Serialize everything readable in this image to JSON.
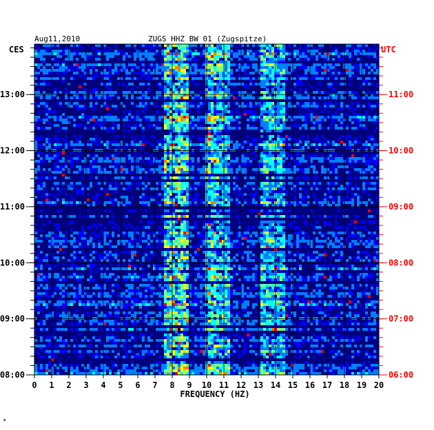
{
  "header": {
    "date": "Aug11,2010",
    "station": "ZUGS HHZ BW 01 (Zugspitze)"
  },
  "chart_data": {
    "type": "heatmap",
    "title": "ZUGS HHZ BW 01 (Zugspitze)",
    "date": "Aug11,2010",
    "xlabel": "FREQUENCY (HZ)",
    "xlim": [
      0,
      20
    ],
    "x_ticks": [
      "0",
      "1",
      "2",
      "3",
      "4",
      "5",
      "6",
      "7",
      "8",
      "9",
      "10",
      "11",
      "12",
      "13",
      "14",
      "15",
      "16",
      "17",
      "18",
      "19",
      "20"
    ],
    "left_axis_label": "CES",
    "left_ticks": [
      {
        "label": "13:00",
        "hour": 13
      },
      {
        "label": "12:00",
        "hour": 12
      },
      {
        "label": "11:00",
        "hour": 11
      },
      {
        "label": "10:00",
        "hour": 10
      },
      {
        "label": "09:00",
        "hour": 9
      },
      {
        "label": "08:00",
        "hour": 8
      }
    ],
    "right_axis_label": "UTC",
    "right_ticks": [
      {
        "label": "11:00",
        "hour": 11
      },
      {
        "label": "10:00",
        "hour": 10
      },
      {
        "label": "09:00",
        "hour": 9
      },
      {
        "label": "08:00",
        "hour": 8
      },
      {
        "label": "07:00",
        "hour": 7
      },
      {
        "label": "06:00",
        "hour": 6
      }
    ],
    "time_range_ces": [
      8.0,
      13.9
    ],
    "grid": true,
    "colormap": [
      "#00007f",
      "#0000ff",
      "#007fff",
      "#00ffff",
      "#7fff7f",
      "#ffff00",
      "#ff7f00",
      "#ff0000"
    ],
    "energy_bands_hz": [
      {
        "range": [
          7.6,
          9.0
        ],
        "strength": 0.55
      },
      {
        "range": [
          9.9,
          10.5
        ],
        "strength": 0.5
      },
      {
        "range": [
          10.6,
          11.3
        ],
        "strength": 0.4
      },
      {
        "range": [
          13.2,
          14.5
        ],
        "strength": 0.35
      }
    ]
  },
  "colors": {
    "left_label": "#000000",
    "right_label": "#ff0000",
    "grid": "#000000"
  },
  "footer_mark": "*"
}
